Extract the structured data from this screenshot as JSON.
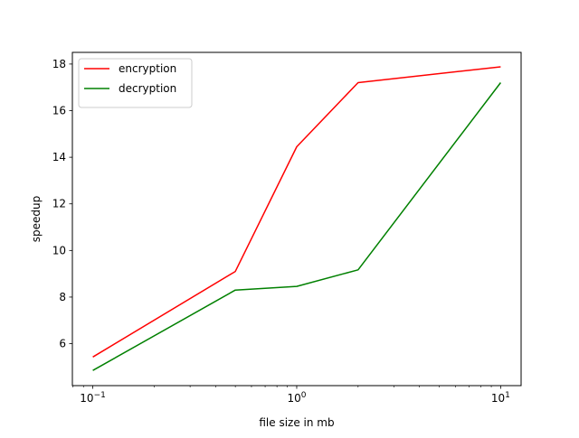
{
  "chart_data": {
    "type": "line",
    "title": "",
    "xlabel": "file size in mb",
    "ylabel": "speedup",
    "xscale": "log",
    "xlim": [
      0.0794,
      12.6
    ],
    "ylim": [
      4.2,
      18.5
    ],
    "x_major_ticks": [
      {
        "value": 0.1,
        "base": "10",
        "exp": "−1"
      },
      {
        "value": 1,
        "base": "10",
        "exp": "0"
      },
      {
        "value": 10,
        "base": "10",
        "exp": "1"
      }
    ],
    "y_ticks": [
      6,
      8,
      10,
      12,
      14,
      16,
      18
    ],
    "grid": false,
    "legend_position": "upper-left",
    "x": [
      0.1,
      0.5,
      1,
      2,
      10
    ],
    "series": [
      {
        "name": "encryption",
        "color": "#ff0000",
        "values": [
          5.43,
          9.1,
          14.45,
          17.2,
          17.88
        ]
      },
      {
        "name": "decryption",
        "color": "#008000",
        "values": [
          4.85,
          8.3,
          8.46,
          9.17,
          17.2
        ]
      }
    ]
  }
}
